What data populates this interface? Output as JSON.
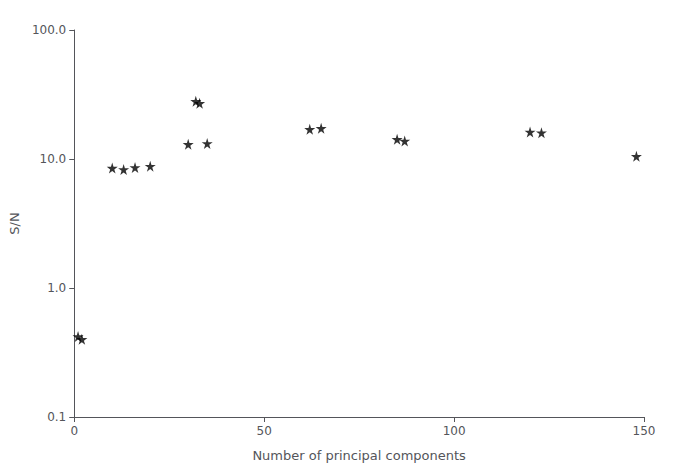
{
  "chart_data": {
    "type": "scatter",
    "x": [
      1,
      2,
      10,
      13,
      16,
      20,
      30,
      35,
      32,
      33,
      62,
      65,
      85,
      87,
      120,
      123,
      148
    ],
    "values": [
      0.42,
      0.4,
      8.5,
      8.3,
      8.6,
      8.8,
      13.0,
      13.2,
      28.0,
      27.0,
      17.0,
      17.3,
      14.2,
      13.8,
      16.2,
      16.0,
      10.5
    ],
    "xlabel": "Number of principal components",
    "ylabel": "S/N",
    "xlim": [
      0,
      150
    ],
    "ylim": [
      0.1,
      100.0
    ],
    "xticks": [
      0,
      50,
      100,
      150
    ],
    "yticks": [
      0.1,
      {
        "value": 1,
        "label": "1.0"
      },
      {
        "value": 10,
        "label": "10.0"
      },
      {
        "value": 100,
        "label": "100.0"
      }
    ],
    "log": "y",
    "marker": "star",
    "color": "black",
    "grid": false
  }
}
